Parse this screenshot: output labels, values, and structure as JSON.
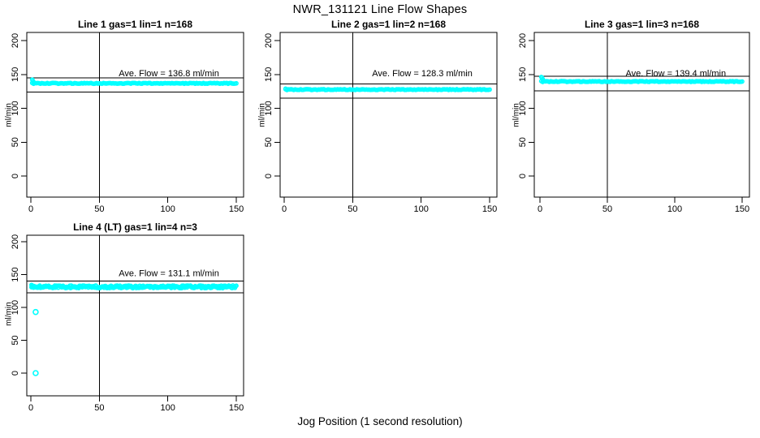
{
  "title": "NWR_131121  Line Flow Shapes",
  "xlabel": "Jog Position (1 second resolution)",
  "colors": {
    "series": "#00FFFF",
    "axis": "#000000",
    "background": "#FFFFFF"
  },
  "chart_data": [
    {
      "type": "scatter",
      "title": "Line 1 gas=1 lin=1 n=168",
      "ylabel": "ml/min",
      "ave_flow": 136.8,
      "ave_flow_label": "Ave. Flow =  136.8  ml/min",
      "n": 168,
      "xlim": [
        0,
        150
      ],
      "ylim": [
        0,
        200
      ],
      "x_ticks": [
        0,
        50,
        100,
        150
      ],
      "y_ticks": [
        0,
        50,
        100,
        150,
        200
      ],
      "level": 136.8,
      "jitter": 0.6,
      "x_start": 1,
      "x_end": 150,
      "initial_points": [
        [
          1,
          142.3
        ],
        [
          1.5,
          140.4
        ],
        [
          2,
          138.6
        ]
      ],
      "outliers": [],
      "ref_lines": [
        145,
        124
      ],
      "vline_x": 50
    },
    {
      "type": "scatter",
      "title": "Line 2 gas=1 lin=2 n=168",
      "ylabel": "ml/min",
      "ave_flow": 128.3,
      "ave_flow_label": "Ave. Flow =  128.3  ml/min",
      "n": 168,
      "xlim": [
        0,
        150
      ],
      "ylim": [
        0,
        200
      ],
      "x_ticks": [
        0,
        50,
        100,
        150
      ],
      "y_ticks": [
        0,
        50,
        100,
        150,
        200
      ],
      "level": 127.6,
      "jitter": 0.6,
      "x_start": 1,
      "x_end": 150,
      "initial_points": [
        [
          1,
          128.9
        ]
      ],
      "outliers": [],
      "ref_lines": [
        136,
        115
      ],
      "vline_x": 50
    },
    {
      "type": "scatter",
      "title": "Line 3 gas=1 lin=3 n=168",
      "ylabel": "ml/min",
      "ave_flow": 139.4,
      "ave_flow_label": "Ave. Flow =  139.4  ml/min",
      "n": 168,
      "xlim": [
        0,
        150
      ],
      "ylim": [
        0,
        200
      ],
      "x_ticks": [
        0,
        50,
        100,
        150
      ],
      "y_ticks": [
        0,
        50,
        100,
        150,
        200
      ],
      "level": 139.5,
      "jitter": 0.6,
      "x_start": 1,
      "x_end": 150,
      "initial_points": [
        [
          1,
          146.2
        ],
        [
          1.5,
          145.2
        ],
        [
          2,
          143.2
        ],
        [
          2.5,
          141.3
        ]
      ],
      "outliers": [],
      "ref_lines": [
        147.5,
        126
      ],
      "vline_x": 50
    },
    {
      "type": "scatter",
      "title": "Line 4 (LT) gas=1 lin=4 n=3",
      "ylabel": "ml/min",
      "ave_flow": 131.1,
      "ave_flow_label": "Ave. Flow =  131.1  ml/min",
      "n": 3,
      "xlim": [
        0,
        150
      ],
      "ylim": [
        0,
        200
      ],
      "x_ticks": [
        0,
        50,
        100,
        150
      ],
      "y_ticks": [
        0,
        50,
        100,
        150,
        200
      ],
      "level": 131.3,
      "jitter": 2.0,
      "x_start": 0.5,
      "x_end": 150,
      "initial_points": [
        [
          0.5,
          134.2
        ],
        [
          1,
          133.4
        ]
      ],
      "outliers": [
        [
          3.5,
          93
        ],
        [
          3.5,
          0
        ]
      ],
      "ref_lines": [
        140,
        122
      ],
      "vline_x": 50
    }
  ]
}
